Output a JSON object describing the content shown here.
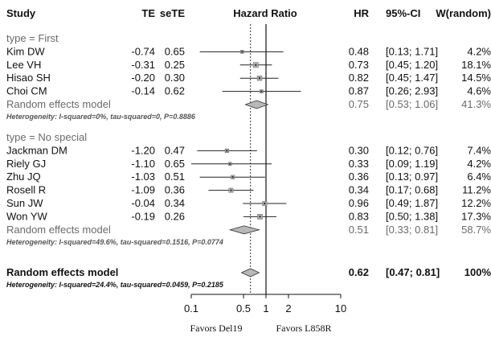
{
  "chart_data": {
    "type": "forest",
    "title": "",
    "columns": {
      "study": "Study",
      "te": "TE",
      "sete": "seTE",
      "plot": "Hazard Ratio",
      "hr": "HR",
      "ci": "95%-CI",
      "weight": "W(random)"
    },
    "x_axis": {
      "scale": "log",
      "range": [
        0.1,
        10
      ],
      "ticks": [
        {
          "value": 0.1,
          "label": "0.1"
        },
        {
          "value": 0.5,
          "label": "0.5"
        },
        {
          "value": 1,
          "label": "1"
        },
        {
          "value": 2,
          "label": "2"
        },
        {
          "value": 10,
          "label": "10"
        }
      ],
      "favors_left": "Favors Del19",
      "favors_right": "Favors L858R",
      "null_line": 1,
      "dotted_line": 0.62
    },
    "groups": [
      {
        "label": "type = First",
        "studies": [
          {
            "name": "Kim DW",
            "te": "-0.74",
            "sete": "0.65",
            "hr": 0.48,
            "lo": 0.13,
            "hi": 1.71,
            "hr_text": "0.48",
            "ci_text": "[0.13; 1.71]",
            "weight_text": "4.2%",
            "weight": 4.2
          },
          {
            "name": "Lee VH",
            "te": "-0.31",
            "sete": "0.25",
            "hr": 0.73,
            "lo": 0.45,
            "hi": 1.2,
            "hr_text": "0.73",
            "ci_text": "[0.45; 1.20]",
            "weight_text": "18.1%",
            "weight": 18.1
          },
          {
            "name": "Hisao SH",
            "te": "-0.20",
            "sete": "0.30",
            "hr": 0.82,
            "lo": 0.45,
            "hi": 1.47,
            "hr_text": "0.82",
            "ci_text": "[0.45; 1.47]",
            "weight_text": "14.5%",
            "weight": 14.5
          },
          {
            "name": "Choi CM",
            "te": "-0.14",
            "sete": "0.62",
            "hr": 0.87,
            "lo": 0.26,
            "hi": 2.93,
            "hr_text": "0.87",
            "ci_text": "[0.26; 2.93]",
            "weight_text": "4.6%",
            "weight": 4.6
          }
        ],
        "summary": {
          "label": "Random effects model",
          "hr": 0.75,
          "lo": 0.53,
          "hi": 1.06,
          "hr_text": "0.75",
          "ci_text": "[0.53; 1.06]",
          "weight_text": "41.3%"
        },
        "heterogeneity": "Heterogeneity: I-squared=0%, tau-squared=0, P=0.8886"
      },
      {
        "label": "type = No special",
        "studies": [
          {
            "name": "Jackman DM",
            "te": "-1.20",
            "sete": "0.47",
            "hr": 0.3,
            "lo": 0.12,
            "hi": 0.76,
            "hr_text": "0.30",
            "ci_text": "[0.12; 0.76]",
            "weight_text": "7.4%",
            "weight": 7.4
          },
          {
            "name": "Riely GJ",
            "te": "-1.10",
            "sete": "0.65",
            "hr": 0.33,
            "lo": 0.09,
            "hi": 1.19,
            "hr_text": "0.33",
            "ci_text": "[0.09; 1.19]",
            "weight_text": "4.2%",
            "weight": 4.2
          },
          {
            "name": "Zhu JQ",
            "te": "-1.03",
            "sete": "0.51",
            "hr": 0.36,
            "lo": 0.13,
            "hi": 0.97,
            "hr_text": "0.36",
            "ci_text": "[0.13; 0.97]",
            "weight_text": "6.4%",
            "weight": 6.4
          },
          {
            "name": "Rosell R",
            "te": "-1.09",
            "sete": "0.36",
            "hr": 0.34,
            "lo": 0.17,
            "hi": 0.68,
            "hr_text": "0.34",
            "ci_text": "[0.17; 0.68]",
            "weight_text": "11.2%",
            "weight": 11.2
          },
          {
            "name": "Sun JW",
            "te": "-0.04",
            "sete": "0.34",
            "hr": 0.96,
            "lo": 0.49,
            "hi": 1.87,
            "hr_text": "0.96",
            "ci_text": "[0.49; 1.87]",
            "weight_text": "12.2%",
            "weight": 12.2
          },
          {
            "name": "Won YW",
            "te": "-0.19",
            "sete": "0.26",
            "hr": 0.83,
            "lo": 0.5,
            "hi": 1.38,
            "hr_text": "0.83",
            "ci_text": "[0.50; 1.38]",
            "weight_text": "17.3%",
            "weight": 17.3
          }
        ],
        "summary": {
          "label": "Random effects model",
          "hr": 0.51,
          "lo": 0.33,
          "hi": 0.81,
          "hr_text": "0.51",
          "ci_text": "[0.33; 0.81]",
          "weight_text": "58.7%"
        },
        "heterogeneity": "Heterogeneity: I-squared=49.6%, tau-squared=0.1516, P=0.0774"
      }
    ],
    "overall": {
      "label": "Random effects model",
      "hr": 0.62,
      "lo": 0.47,
      "hi": 0.81,
      "hr_text": "0.62",
      "ci_text": "[0.47; 0.81]",
      "weight_text": "100%",
      "heterogeneity": "Heterogeneity: I-squared=24.4%, tau-squared=0.0459, P=0.2185"
    },
    "colors": {
      "text": "#111111",
      "summary_text": "#6a6a6a",
      "diamond": "#b8b8b8",
      "box": "#b0b0b0"
    }
  }
}
